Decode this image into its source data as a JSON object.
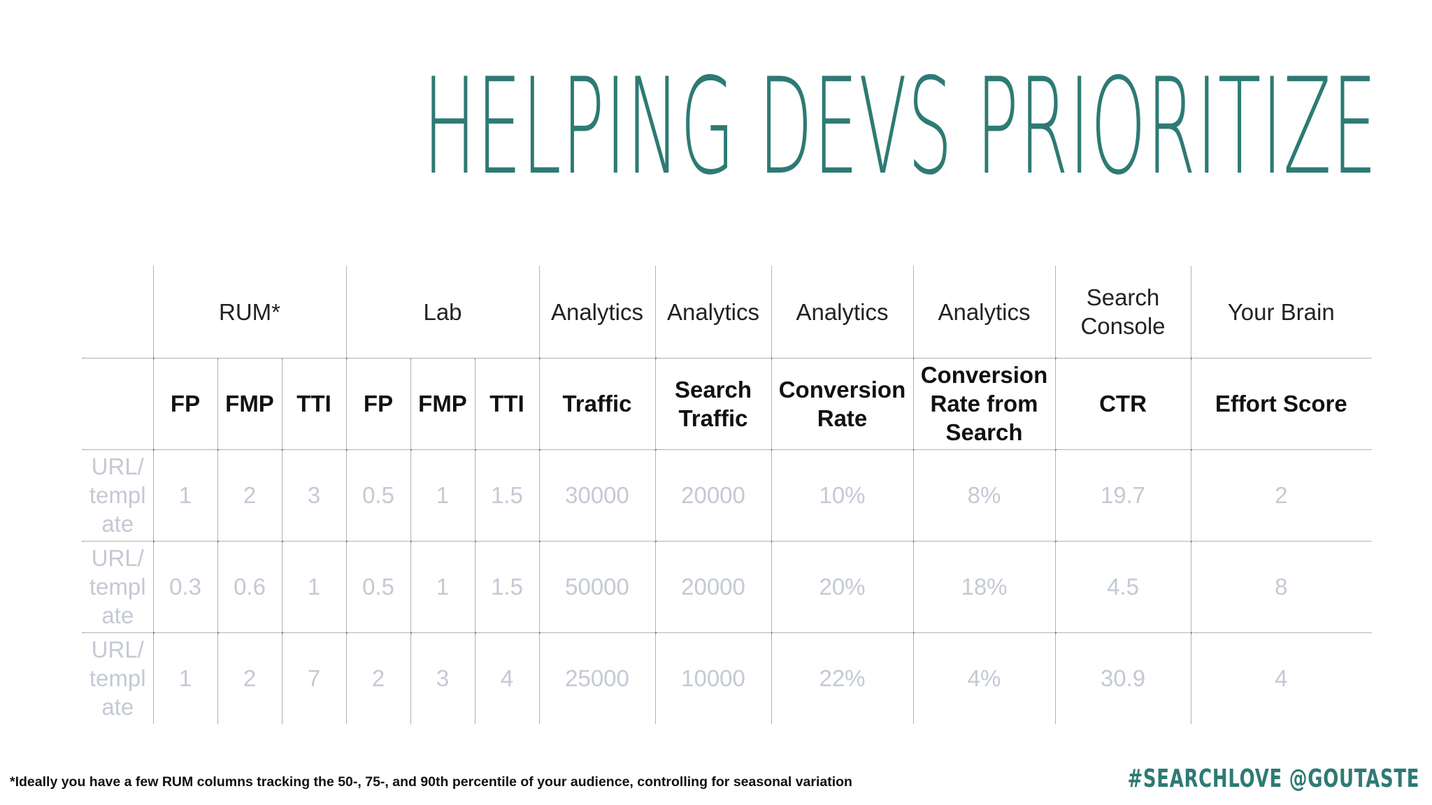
{
  "slide": {
    "title": "HELPING DEVS PRIORITIZE",
    "footnote": "*Ideally you have a few RUM columns tracking the 50-, 75-, and 90th percentile of your audience, controlling for seasonal variation",
    "handle": "#SEARCHLOVE @GOUTASTE"
  },
  "table": {
    "sources": {
      "rum": "RUM*",
      "lab": "Lab",
      "analytics_1": "Analytics",
      "analytics_2": "Analytics",
      "analytics_3": "Analytics",
      "analytics_4": "Analytics",
      "search_console_1": "Search",
      "search_console_2": "Console",
      "your_brain": "Your Brain"
    },
    "metrics": {
      "rum_fp": "FP",
      "rum_fmp": "FMP",
      "rum_tti": "TTI",
      "lab_fp": "FP",
      "lab_fmp": "FMP",
      "lab_tti": "TTI",
      "traffic": "Traffic",
      "search_traffic_1": "Search",
      "search_traffic_2": "Traffic",
      "conversion_rate_1": "Conversion",
      "conversion_rate_2": "Rate",
      "crfs_1": "Conversion",
      "crfs_2": "Rate from",
      "crfs_3": "Search",
      "ctr": "CTR",
      "effort_score": "Effort Score"
    },
    "rows": [
      {
        "label_1": "URL/",
        "label_2": "templ",
        "label_3": "ate",
        "values": [
          "1",
          "2",
          "3",
          "0.5",
          "1",
          "1.5",
          "30000",
          "20000",
          "10%",
          "8%",
          "19.7",
          "2"
        ]
      },
      {
        "label_1": "URL/",
        "label_2": "templ",
        "label_3": "ate",
        "values": [
          "0.3",
          "0.6",
          "1",
          "0.5",
          "1",
          "1.5",
          "50000",
          "20000",
          "20%",
          "18%",
          "4.5",
          "8"
        ]
      },
      {
        "label_1": "URL/",
        "label_2": "templ",
        "label_3": "ate",
        "values": [
          "1",
          "2",
          "7",
          "2",
          "3",
          "4",
          "25000",
          "10000",
          "22%",
          "4%",
          "30.9",
          "4"
        ]
      }
    ]
  }
}
